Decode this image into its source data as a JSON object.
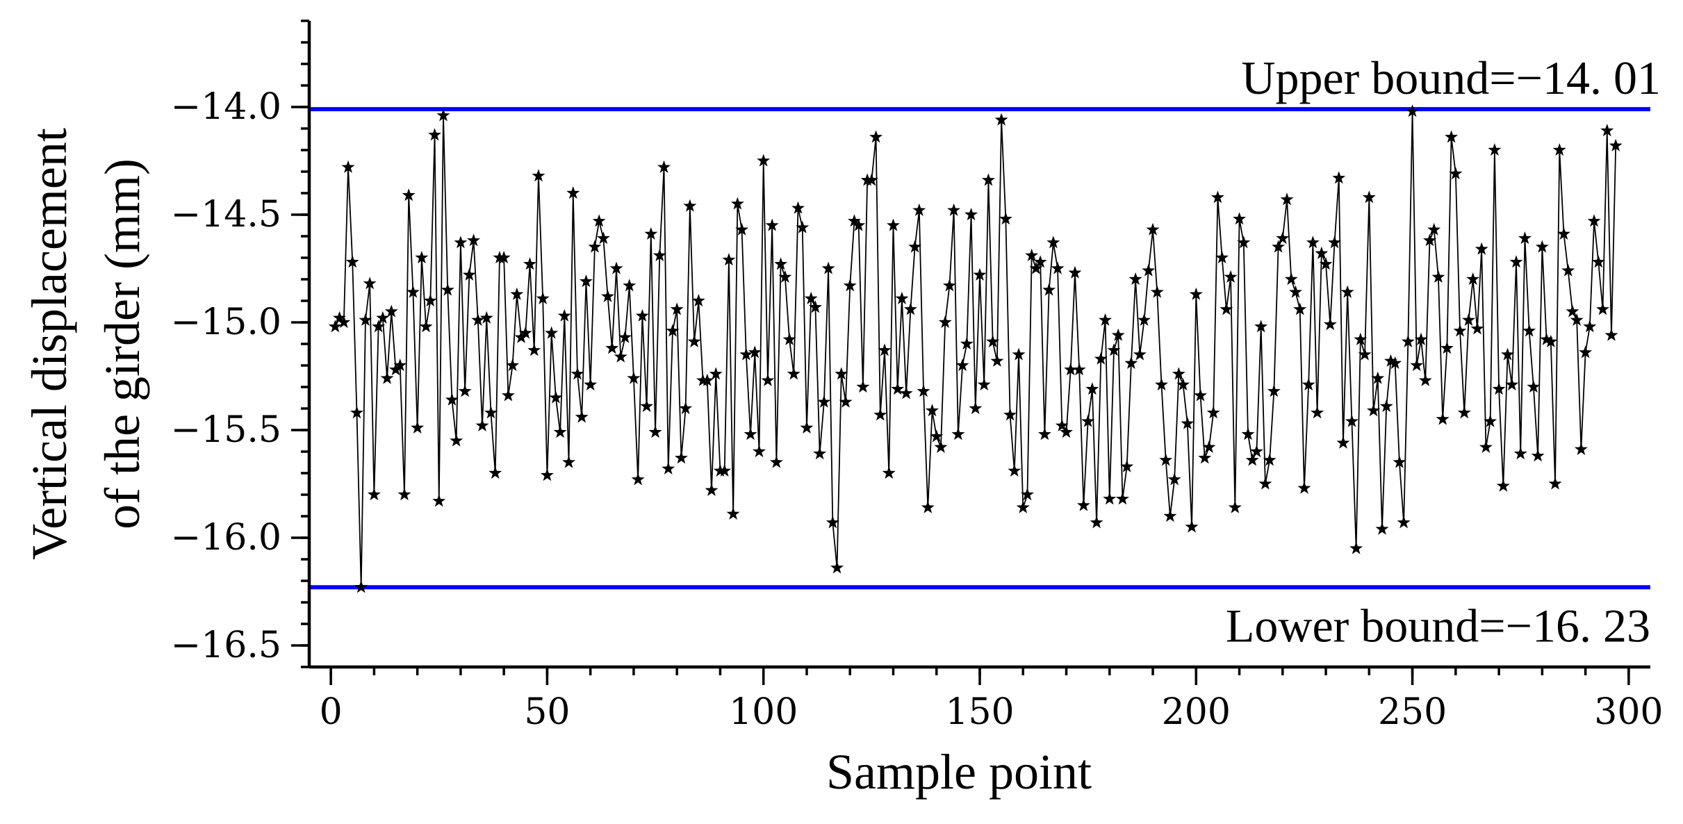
{
  "chart_data": {
    "type": "line",
    "title": "",
    "xlabel": "Sample point",
    "ylabel_lines": [
      "Vertical displacement",
      "of the girder (mm)"
    ],
    "xlim": [
      -5,
      305
    ],
    "ylim": [
      -16.6,
      -13.6
    ],
    "x_ticks": [
      0,
      50,
      100,
      150,
      200,
      250,
      300
    ],
    "x_tick_labels": [
      "0",
      "50",
      "100",
      "150",
      "200",
      "250",
      "300"
    ],
    "y_ticks": [
      -14.0,
      -14.5,
      -15.0,
      -15.5,
      -16.0,
      -16.5
    ],
    "y_tick_labels": [
      "−14.0",
      "−14.5",
      "−15.0",
      "−15.5",
      "−16.0",
      "−16.5"
    ],
    "grid": false,
    "marker": "star",
    "upper_bound": {
      "value": -14.01,
      "label": "Upper bound=−14. 01",
      "color": "#0000ff"
    },
    "lower_bound": {
      "value": -16.23,
      "label": "Lower bound=−16. 23",
      "color": "#0000ff"
    },
    "series": [
      {
        "values": [
          -15.02,
          -14.98,
          -15.0,
          -14.28,
          -14.72,
          -15.42,
          -16.23,
          -14.99,
          -14.82,
          -15.8,
          -15.02,
          -14.98,
          -15.26,
          -14.95,
          -15.22,
          -15.2,
          -15.8,
          -14.41,
          -14.86,
          -15.49,
          -14.7,
          -15.02,
          -14.9,
          -14.13,
          -15.83,
          -14.04,
          -14.85,
          -15.36,
          -15.55,
          -14.63,
          -15.32,
          -14.78,
          -14.62,
          -14.99,
          -15.48,
          -14.98,
          -15.42,
          -15.7,
          -14.7,
          -14.7,
          -15.34,
          -15.2,
          -14.87,
          -15.07,
          -15.05,
          -14.73,
          -15.13,
          -14.32,
          -14.89,
          -15.71,
          -15.05,
          -15.35,
          -15.51,
          -14.97,
          -15.65,
          -14.4,
          -15.24,
          -15.44,
          -14.81,
          -15.29,
          -14.65,
          -14.53,
          -14.61,
          -14.88,
          -15.12,
          -14.75,
          -15.16,
          -15.07,
          -14.83,
          -15.26,
          -15.73,
          -14.97,
          -15.39,
          -14.59,
          -15.51,
          -14.69,
          -14.28,
          -15.68,
          -15.04,
          -14.94,
          -15.63,
          -15.4,
          -14.46,
          -15.09,
          -14.9,
          -15.27,
          -15.27,
          -15.78,
          -15.24,
          -15.69,
          -15.69,
          -14.71,
          -15.89,
          -14.45,
          -14.57,
          -15.15,
          -15.52,
          -15.14,
          -15.6,
          -14.25,
          -15.27,
          -14.55,
          -15.65,
          -14.73,
          -14.79,
          -15.08,
          -15.24,
          -14.47,
          -14.56,
          -15.49,
          -14.89,
          -14.93,
          -15.61,
          -15.37,
          -14.75,
          -15.93,
          -16.14,
          -15.24,
          -15.37,
          -14.83,
          -14.53,
          -14.55,
          -15.3,
          -14.34,
          -14.34,
          -14.14,
          -15.43,
          -15.13,
          -15.7,
          -14.55,
          -15.31,
          -14.89,
          -15.33,
          -14.94,
          -14.65,
          -14.48,
          -15.32,
          -15.86,
          -15.41,
          -15.53,
          -15.58,
          -15.0,
          -14.83,
          -14.48,
          -15.52,
          -15.2,
          -15.1,
          -14.5,
          -15.4,
          -14.78,
          -15.29,
          -14.34,
          -15.09,
          -15.18,
          -14.06,
          -14.52,
          -15.43,
          -15.69,
          -15.15,
          -15.86,
          -15.8,
          -14.69,
          -14.75,
          -14.72,
          -15.52,
          -14.85,
          -14.63,
          -14.75,
          -15.48,
          -15.51,
          -15.22,
          -14.77,
          -15.22,
          -15.85,
          -15.46,
          -15.31,
          -15.93,
          -15.17,
          -14.99,
          -15.82,
          -15.13,
          -15.06,
          -15.82,
          -15.67,
          -15.19,
          -14.8,
          -15.15,
          -14.99,
          -14.76,
          -14.57,
          -14.86,
          -15.29,
          -15.64,
          -15.9,
          -15.73,
          -15.24,
          -15.29,
          -15.47,
          -15.95,
          -14.87,
          -15.34,
          -15.63,
          -15.58,
          -15.42,
          -14.42,
          -14.7,
          -14.94,
          -14.79,
          -15.86,
          -14.52,
          -14.63,
          -15.52,
          -15.64,
          -15.6,
          -15.02,
          -15.75,
          -15.64,
          -15.32,
          -14.65,
          -14.61,
          -14.43,
          -14.8,
          -14.86,
          -14.94,
          -15.77,
          -15.29,
          -14.63,
          -15.42,
          -14.68,
          -14.73,
          -15.01,
          -14.63,
          -14.33,
          -15.56,
          -14.86,
          -15.46,
          -16.05,
          -15.08,
          -15.15,
          -14.42,
          -15.41,
          -15.26,
          -15.96,
          -15.39,
          -15.18,
          -15.19,
          -15.65,
          -15.93,
          -15.09,
          -14.02,
          -15.2,
          -15.08,
          -15.27,
          -14.62,
          -14.57,
          -14.79,
          -15.45,
          -15.12,
          -14.14,
          -14.31,
          -15.04,
          -15.42,
          -14.99,
          -14.8,
          -15.03,
          -14.66,
          -15.58,
          -15.46,
          -14.2,
          -15.31,
          -15.76,
          -15.15,
          -15.29,
          -14.72,
          -15.61,
          -14.61,
          -15.04,
          -15.3,
          -15.62,
          -14.65,
          -15.08,
          -15.09,
          -15.75,
          -14.2,
          -14.59,
          -14.76,
          -14.95,
          -14.99,
          -15.59,
          -15.14,
          -15.02,
          -14.53,
          -14.72,
          -14.94,
          -14.11,
          -15.06,
          -14.18
        ]
      }
    ]
  }
}
